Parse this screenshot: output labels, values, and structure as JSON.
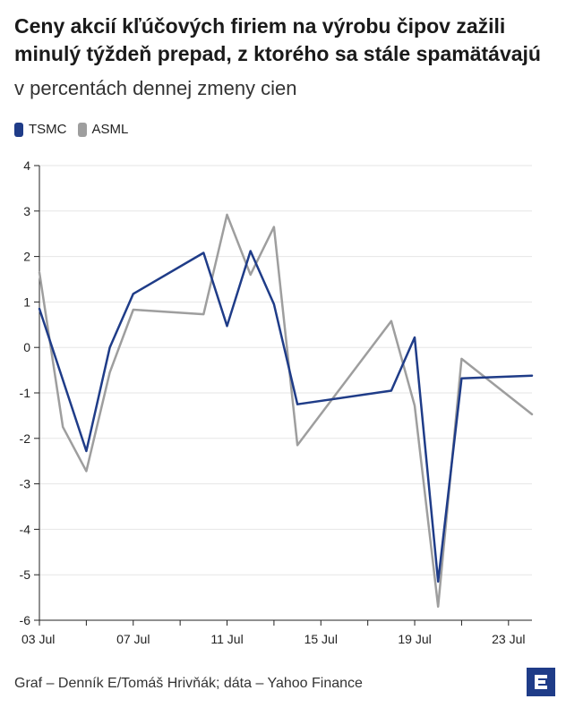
{
  "title": "Ceny akcií kľúčových firiem na výrobu čipov zažili minulý týždeň prepad, z ktorého sa stále spamätávajú",
  "subtitle": "v percentách dennej zmeny cien",
  "footer": "Graf – Denník E/Tomáš Hrivňák; dáta – Yahoo Finance",
  "logo_icon": "denník-e-logo-icon",
  "chart_data": {
    "type": "line",
    "title": "Ceny akcií kľúčových firiem na výrobu čipov zažili minulý týždeň prepad, z ktorého sa stále spamätávajú",
    "subtitle": "v percentách dennej zmeny cien",
    "xlabel": "",
    "ylabel": "",
    "ylim": [
      -6,
      4
    ],
    "yticks": [
      4,
      3,
      2,
      1,
      0,
      -1,
      -2,
      -3,
      -4,
      -5,
      -6
    ],
    "yticklabels": [
      "4",
      "3",
      "2",
      "1",
      "0",
      "-1",
      "-2",
      "-3",
      "-4",
      "-5",
      "-6"
    ],
    "xlim": [
      "2024-07-03",
      "2024-07-24"
    ],
    "xticks": [
      "2024-07-03",
      "2024-07-05",
      "2024-07-07",
      "2024-07-09",
      "2024-07-11",
      "2024-07-13",
      "2024-07-15",
      "2024-07-17",
      "2024-07-19",
      "2024-07-21",
      "2024-07-23"
    ],
    "xticklabels": [
      "03 Jul",
      "",
      "07 Jul",
      "",
      "11 Jul",
      "",
      "15 Jul",
      "",
      "19 Jul",
      "",
      "23 Jul"
    ],
    "grid": true,
    "legend_position": "top-left",
    "series": [
      {
        "name": "TSMC",
        "color": "#1f3c88",
        "points": [
          [
            "2024-07-03",
            0.85
          ],
          [
            "2024-07-05",
            -2.28
          ],
          [
            "2024-07-06",
            0.0
          ],
          [
            "2024-07-07",
            1.18
          ],
          [
            "2024-07-10",
            2.08
          ],
          [
            "2024-07-11",
            0.47
          ],
          [
            "2024-07-12",
            2.12
          ],
          [
            "2024-07-13",
            0.95
          ],
          [
            "2024-07-14",
            -1.25
          ],
          [
            "2024-07-18",
            -0.95
          ],
          [
            "2024-07-19",
            0.22
          ],
          [
            "2024-07-20",
            -5.15
          ],
          [
            "2024-07-21",
            -0.68
          ],
          [
            "2024-07-24",
            -0.62
          ]
        ]
      },
      {
        "name": "ASML",
        "color": "#9e9e9e",
        "points": [
          [
            "2024-07-03",
            1.65
          ],
          [
            "2024-07-04",
            -1.75
          ],
          [
            "2024-07-05",
            -2.72
          ],
          [
            "2024-07-06",
            -0.55
          ],
          [
            "2024-07-07",
            0.83
          ],
          [
            "2024-07-10",
            0.73
          ],
          [
            "2024-07-11",
            2.92
          ],
          [
            "2024-07-12",
            1.6
          ],
          [
            "2024-07-13",
            2.65
          ],
          [
            "2024-07-14",
            -2.15
          ],
          [
            "2024-07-18",
            0.58
          ],
          [
            "2024-07-19",
            -1.28
          ],
          [
            "2024-07-20",
            -5.7
          ],
          [
            "2024-07-21",
            -0.25
          ],
          [
            "2024-07-24",
            -1.47
          ]
        ]
      }
    ]
  }
}
